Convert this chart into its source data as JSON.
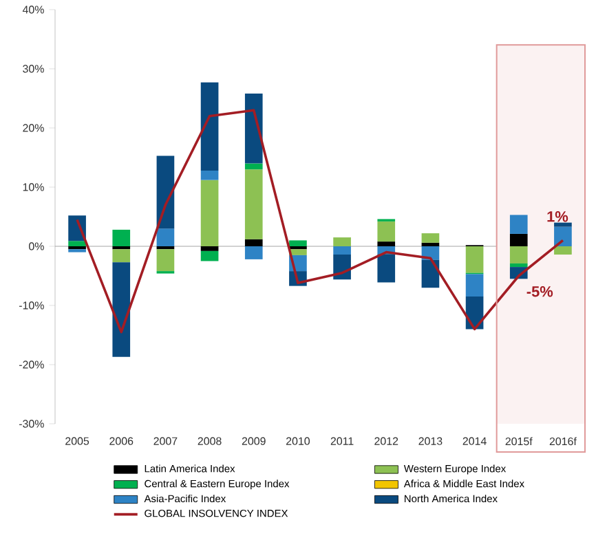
{
  "chart_data": {
    "type": "bar",
    "stacked": true,
    "categories": [
      "2005",
      "2006",
      "2007",
      "2008",
      "2009",
      "2010",
      "2011",
      "2012",
      "2013",
      "2014",
      "2015f",
      "2016f"
    ],
    "series": [
      {
        "name": "Latin America Index",
        "color": "#000000",
        "values": [
          -0.5,
          -0.5,
          -0.5,
          -0.8,
          1.2,
          -0.5,
          0,
          0.8,
          0.6,
          0.2,
          2.1,
          0
        ]
      },
      {
        "name": "Western Europe Index",
        "color": "#8dc153",
        "values": [
          0,
          -2.2,
          -3.7,
          11.2,
          11.8,
          -1,
          1.5,
          3.4,
          1.6,
          -4.5,
          -2.9,
          -1.4
        ]
      },
      {
        "name": "Central & Eastern Europe Index",
        "color": "#00b050",
        "values": [
          0.9,
          2.8,
          -0.4,
          -1.7,
          1,
          1,
          0,
          0.4,
          0,
          -0.2,
          -0.6,
          0
        ]
      },
      {
        "name": "Africa & Middle East Index",
        "color": "#f2c500",
        "values": [
          0,
          0,
          0,
          0,
          0,
          0,
          0,
          0,
          0,
          0,
          0,
          0
        ]
      },
      {
        "name": "Asia-Pacific Index",
        "color": "#2e83c5",
        "values": [
          -0.5,
          0,
          3,
          1.6,
          -2.2,
          -2.7,
          -1.4,
          -1.3,
          -2.3,
          -3.8,
          3.2,
          3.3
        ]
      },
      {
        "name": "North America Index",
        "color": "#0a4a7f",
        "values": [
          4.3,
          -16,
          12.3,
          14.9,
          11.8,
          -2.5,
          -4.2,
          -4.8,
          -4.7,
          -5.5,
          -2,
          0.7
        ]
      },
      {
        "name": "GLOBAL INSOLVENCY INDEX",
        "color": "#a31d24",
        "type": "line",
        "values": [
          4.5,
          -14.5,
          7,
          22,
          23,
          -6.2,
          -4.5,
          -1,
          -2,
          -14,
          -5,
          1
        ]
      }
    ],
    "ylim": [
      -30,
      40
    ],
    "yticks": [
      {
        "value": -30,
        "label": "-30%"
      },
      {
        "value": -20,
        "label": "-20%"
      },
      {
        "value": -10,
        "label": "-10%"
      },
      {
        "value": 0,
        "label": "0%"
      },
      {
        "value": 10,
        "label": "10%"
      },
      {
        "value": 20,
        "label": "20%"
      },
      {
        "value": 30,
        "label": "30%"
      },
      {
        "value": 40,
        "label": "40%"
      }
    ],
    "annotations": [
      {
        "text": "-5%",
        "x": "2015f",
        "y": -5
      },
      {
        "text": "1%",
        "x": "2016f",
        "y": 1
      }
    ],
    "bands": [
      {
        "axis": "x",
        "from": "2015f",
        "to": "2016f",
        "label": null
      }
    ],
    "legend": "bottom"
  }
}
